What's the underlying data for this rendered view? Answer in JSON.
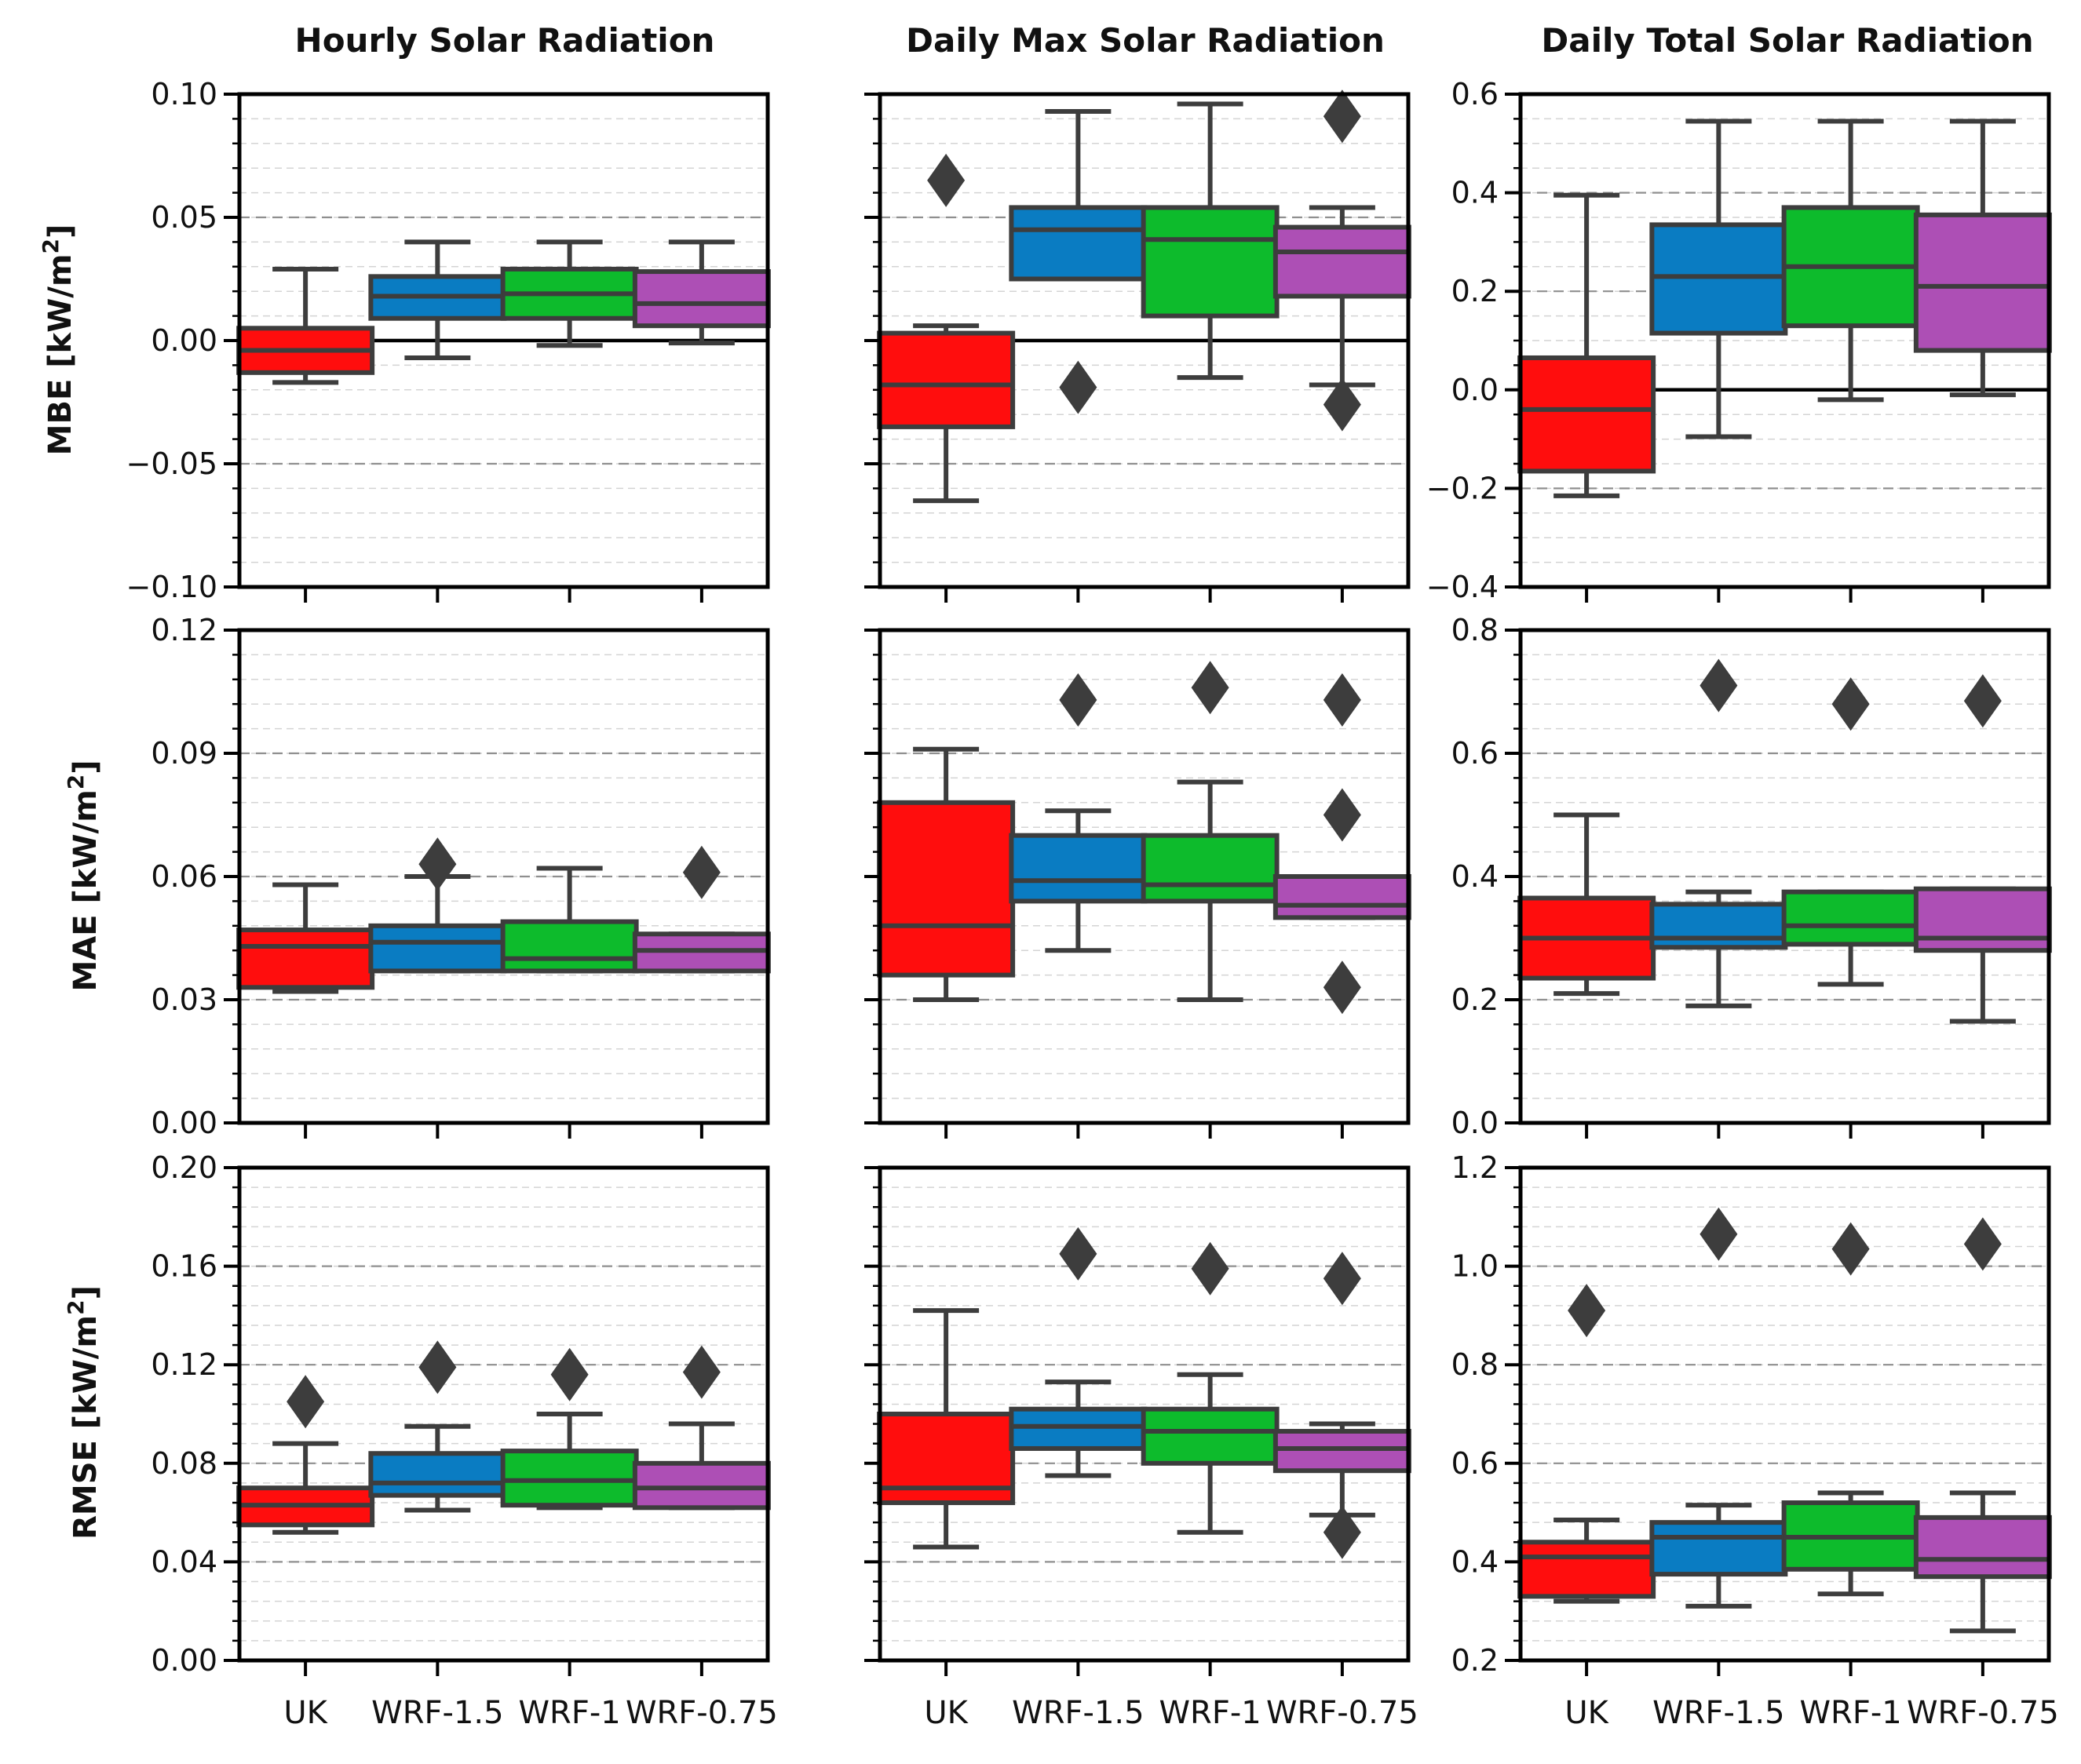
{
  "figure": {
    "column_titles": [
      "Hourly Solar Radiation",
      "Daily Max Solar Radiation",
      "Daily Total Solar Radiation"
    ],
    "row_labels": [
      {
        "metric": "MBE",
        "unit_prefix": "[kW/m",
        "unit_sup": "2",
        "unit_suffix": "]"
      },
      {
        "metric": "MAE",
        "unit_prefix": "[kW/m",
        "unit_sup": "2",
        "unit_suffix": "]"
      },
      {
        "metric": "RMSE",
        "unit_prefix": "[kW/m",
        "unit_sup": "2",
        "unit_suffix": "]"
      }
    ]
  },
  "colors": {
    "UK": "#ff0d0d",
    "WRF-1.5": "#0a7cc2",
    "WRF-1": "#0dbb2c",
    "WRF-0.75": "#ad4fb5",
    "box_edge": "#3d3d3d",
    "flier": "#3d3d3d",
    "grid_major": "#8f8f8f",
    "grid_minor": "#d4d4d4",
    "zero_line": "#000000",
    "axis": "#000000"
  },
  "chart_data": [
    {
      "type": "box",
      "row": 0,
      "col": 0,
      "title": "Hourly Solar Radiation",
      "ylabel": "MBE [kW/m2]",
      "categories": [
        "UK",
        "WRF-1.5",
        "WRF-1",
        "WRF-0.75"
      ],
      "show_category_labels": false,
      "ylim": [
        -0.1,
        0.1
      ],
      "yticks": [
        "0.10",
        "0.05",
        "0.00",
        "−0.05",
        "−0.10"
      ],
      "ytick_values": [
        0.1,
        0.05,
        0,
        -0.05,
        -0.1
      ],
      "ticks_side": "left",
      "zero_line": true,
      "grid_major": [
        0.05,
        -0.05
      ],
      "minor_step": 0.01,
      "boxes": [
        {
          "category": "UK",
          "whislo": -0.017,
          "q1": -0.013,
          "med": -0.004,
          "q3": 0.005,
          "whishi": 0.029,
          "fliers": []
        },
        {
          "category": "WRF-1.5",
          "whislo": -0.007,
          "q1": 0.009,
          "med": 0.018,
          "q3": 0.026,
          "whishi": 0.04,
          "fliers": []
        },
        {
          "category": "WRF-1",
          "whislo": -0.002,
          "q1": 0.009,
          "med": 0.019,
          "q3": 0.029,
          "whishi": 0.04,
          "fliers": []
        },
        {
          "category": "WRF-0.75",
          "whislo": -0.001,
          "q1": 0.006,
          "med": 0.015,
          "q3": 0.028,
          "whishi": 0.04,
          "fliers": []
        }
      ]
    },
    {
      "type": "box",
      "row": 0,
      "col": 1,
      "title": "Daily Max Solar Radiation",
      "ylabel": "",
      "categories": [
        "UK",
        "WRF-1.5",
        "WRF-1",
        "WRF-0.75"
      ],
      "show_category_labels": false,
      "ylim": [
        -0.1,
        0.1
      ],
      "yticks": [],
      "ytick_values": [
        0.1,
        0.05,
        0,
        -0.05,
        -0.1
      ],
      "ticks_side": "left",
      "zero_line": true,
      "grid_major": [
        0.05,
        -0.05
      ],
      "minor_step": 0.01,
      "boxes": [
        {
          "category": "UK",
          "whislo": -0.065,
          "q1": -0.035,
          "med": -0.018,
          "q3": 0.003,
          "whishi": 0.006,
          "fliers": [
            0.065
          ]
        },
        {
          "category": "WRF-1.5",
          "whislo": 0.025,
          "q1": 0.025,
          "med": 0.045,
          "q3": 0.054,
          "whishi": 0.093,
          "fliers": [
            -0.019
          ]
        },
        {
          "category": "WRF-1",
          "whislo": -0.015,
          "q1": 0.01,
          "med": 0.041,
          "q3": 0.054,
          "whishi": 0.096,
          "fliers": []
        },
        {
          "category": "WRF-0.75",
          "whislo": -0.018,
          "q1": 0.018,
          "med": 0.036,
          "q3": 0.046,
          "whishi": 0.054,
          "fliers": [
            0.091,
            -0.026
          ]
        }
      ]
    },
    {
      "type": "box",
      "row": 0,
      "col": 2,
      "title": "Daily Total Solar Radiation",
      "ylabel": "",
      "categories": [
        "UK",
        "WRF-1.5",
        "WRF-1",
        "WRF-0.75"
      ],
      "show_category_labels": false,
      "ylim": [
        -0.4,
        0.6
      ],
      "yticks": [
        "0.6",
        "0.4",
        "0.2",
        "0.0",
        "−0.2",
        "−0.4"
      ],
      "ytick_values": [
        0.6,
        0.4,
        0.2,
        0,
        -0.2,
        -0.4
      ],
      "ticks_side": "left",
      "zero_line": true,
      "grid_major": [
        0.4,
        0.2,
        -0.2
      ],
      "minor_step": 0.05,
      "boxes": [
        {
          "category": "UK",
          "whislo": -0.215,
          "q1": -0.165,
          "med": -0.04,
          "q3": 0.065,
          "whishi": 0.395,
          "fliers": []
        },
        {
          "category": "WRF-1.5",
          "whislo": -0.095,
          "q1": 0.115,
          "med": 0.23,
          "q3": 0.335,
          "whishi": 0.545,
          "fliers": []
        },
        {
          "category": "WRF-1",
          "whislo": -0.02,
          "q1": 0.13,
          "med": 0.25,
          "q3": 0.37,
          "whishi": 0.545,
          "fliers": []
        },
        {
          "category": "WRF-0.75",
          "whislo": -0.01,
          "q1": 0.08,
          "med": 0.21,
          "q3": 0.355,
          "whishi": 0.545,
          "fliers": []
        }
      ]
    },
    {
      "type": "box",
      "row": 1,
      "col": 0,
      "title": "",
      "ylabel": "MAE [kW/m2]",
      "categories": [
        "UK",
        "WRF-1.5",
        "WRF-1",
        "WRF-0.75"
      ],
      "show_category_labels": false,
      "ylim": [
        0,
        0.12
      ],
      "yticks": [
        "0.12",
        "0.09",
        "0.06",
        "0.03",
        "0.00"
      ],
      "ytick_values": [
        0.12,
        0.09,
        0.06,
        0.03,
        0
      ],
      "ticks_side": "left",
      "zero_line": false,
      "grid_major": [
        0.09,
        0.06,
        0.03
      ],
      "minor_step": 0.006,
      "boxes": [
        {
          "category": "UK",
          "whislo": 0.032,
          "q1": 0.033,
          "med": 0.043,
          "q3": 0.047,
          "whishi": 0.058,
          "fliers": []
        },
        {
          "category": "WRF-1.5",
          "whislo": 0.037,
          "q1": 0.037,
          "med": 0.044,
          "q3": 0.048,
          "whishi": 0.06,
          "fliers": [
            0.063
          ]
        },
        {
          "category": "WRF-1",
          "whislo": 0.037,
          "q1": 0.037,
          "med": 0.04,
          "q3": 0.049,
          "whishi": 0.062,
          "fliers": []
        },
        {
          "category": "WRF-0.75",
          "whislo": 0.037,
          "q1": 0.037,
          "med": 0.042,
          "q3": 0.046,
          "whishi": 0.046,
          "fliers": [
            0.061
          ]
        }
      ]
    },
    {
      "type": "box",
      "row": 1,
      "col": 1,
      "title": "",
      "ylabel": "",
      "categories": [
        "UK",
        "WRF-1.5",
        "WRF-1",
        "WRF-0.75"
      ],
      "show_category_labels": false,
      "ylim": [
        0,
        0.12
      ],
      "yticks": [],
      "ytick_values": [
        0.12,
        0.09,
        0.06,
        0.03,
        0
      ],
      "ticks_side": "left",
      "zero_line": false,
      "grid_major": [
        0.09,
        0.06,
        0.03
      ],
      "minor_step": 0.006,
      "boxes": [
        {
          "category": "UK",
          "whislo": 0.03,
          "q1": 0.036,
          "med": 0.048,
          "q3": 0.078,
          "whishi": 0.091,
          "fliers": []
        },
        {
          "category": "WRF-1.5",
          "whislo": 0.042,
          "q1": 0.054,
          "med": 0.059,
          "q3": 0.07,
          "whishi": 0.076,
          "fliers": [
            0.103
          ]
        },
        {
          "category": "WRF-1",
          "whislo": 0.03,
          "q1": 0.054,
          "med": 0.058,
          "q3": 0.07,
          "whishi": 0.083,
          "fliers": [
            0.106
          ]
        },
        {
          "category": "WRF-0.75",
          "whislo": 0.05,
          "q1": 0.05,
          "med": 0.053,
          "q3": 0.06,
          "whishi": 0.06,
          "fliers": [
            0.103,
            0.075,
            0.033
          ]
        }
      ]
    },
    {
      "type": "box",
      "row": 1,
      "col": 2,
      "title": "",
      "ylabel": "",
      "categories": [
        "UK",
        "WRF-1.5",
        "WRF-1",
        "WRF-0.75"
      ],
      "show_category_labels": false,
      "ylim": [
        0,
        0.8
      ],
      "yticks": [
        "0.8",
        "0.6",
        "0.4",
        "0.2",
        "0.0"
      ],
      "ytick_values": [
        0.8,
        0.6,
        0.4,
        0.2,
        0
      ],
      "ticks_side": "left",
      "zero_line": false,
      "grid_major": [
        0.6,
        0.4,
        0.2
      ],
      "minor_step": 0.04,
      "boxes": [
        {
          "category": "UK",
          "whislo": 0.21,
          "q1": 0.235,
          "med": 0.3,
          "q3": 0.365,
          "whishi": 0.5,
          "fliers": []
        },
        {
          "category": "WRF-1.5",
          "whislo": 0.19,
          "q1": 0.285,
          "med": 0.3,
          "q3": 0.355,
          "whishi": 0.375,
          "fliers": [
            0.71
          ]
        },
        {
          "category": "WRF-1",
          "whislo": 0.225,
          "q1": 0.29,
          "med": 0.32,
          "q3": 0.375,
          "whishi": 0.375,
          "fliers": [
            0.68
          ]
        },
        {
          "category": "WRF-0.75",
          "whislo": 0.165,
          "q1": 0.28,
          "med": 0.3,
          "q3": 0.38,
          "whishi": 0.38,
          "fliers": [
            0.685
          ]
        }
      ]
    },
    {
      "type": "box",
      "row": 2,
      "col": 0,
      "title": "",
      "ylabel": "RMSE [kW/m2]",
      "categories": [
        "UK",
        "WRF-1.5",
        "WRF-1",
        "WRF-0.75"
      ],
      "show_category_labels": true,
      "ylim": [
        0,
        0.2
      ],
      "yticks": [
        "0.20",
        "0.16",
        "0.12",
        "0.08",
        "0.04",
        "0.00"
      ],
      "ytick_values": [
        0.2,
        0.16,
        0.12,
        0.08,
        0.04,
        0
      ],
      "ticks_side": "left",
      "zero_line": false,
      "grid_major": [
        0.16,
        0.12,
        0.08,
        0.04
      ],
      "minor_step": 0.008,
      "boxes": [
        {
          "category": "UK",
          "whislo": 0.052,
          "q1": 0.055,
          "med": 0.063,
          "q3": 0.07,
          "whishi": 0.088,
          "fliers": [
            0.105
          ]
        },
        {
          "category": "WRF-1.5",
          "whislo": 0.061,
          "q1": 0.067,
          "med": 0.072,
          "q3": 0.084,
          "whishi": 0.095,
          "fliers": [
            0.119
          ]
        },
        {
          "category": "WRF-1",
          "whislo": 0.062,
          "q1": 0.063,
          "med": 0.073,
          "q3": 0.085,
          "whishi": 0.1,
          "fliers": [
            0.116
          ]
        },
        {
          "category": "WRF-0.75",
          "whislo": 0.062,
          "q1": 0.062,
          "med": 0.07,
          "q3": 0.08,
          "whishi": 0.096,
          "fliers": [
            0.117
          ]
        }
      ]
    },
    {
      "type": "box",
      "row": 2,
      "col": 1,
      "title": "",
      "ylabel": "",
      "categories": [
        "UK",
        "WRF-1.5",
        "WRF-1",
        "WRF-0.75"
      ],
      "show_category_labels": true,
      "ylim": [
        0,
        0.2
      ],
      "yticks": [],
      "ytick_values": [
        0.2,
        0.16,
        0.12,
        0.08,
        0.04,
        0
      ],
      "ticks_side": "left",
      "zero_line": false,
      "grid_major": [
        0.16,
        0.12,
        0.08,
        0.04
      ],
      "minor_step": 0.008,
      "boxes": [
        {
          "category": "UK",
          "whislo": 0.046,
          "q1": 0.064,
          "med": 0.07,
          "q3": 0.1,
          "whishi": 0.142,
          "fliers": []
        },
        {
          "category": "WRF-1.5",
          "whislo": 0.075,
          "q1": 0.086,
          "med": 0.095,
          "q3": 0.102,
          "whishi": 0.113,
          "fliers": [
            0.165
          ]
        },
        {
          "category": "WRF-1",
          "whislo": 0.052,
          "q1": 0.08,
          "med": 0.093,
          "q3": 0.102,
          "whishi": 0.116,
          "fliers": [
            0.159
          ]
        },
        {
          "category": "WRF-0.75",
          "whislo": 0.059,
          "q1": 0.077,
          "med": 0.086,
          "q3": 0.093,
          "whishi": 0.096,
          "fliers": [
            0.155,
            0.052
          ]
        }
      ]
    },
    {
      "type": "box",
      "row": 2,
      "col": 2,
      "title": "",
      "ylabel": "",
      "categories": [
        "UK",
        "WRF-1.5",
        "WRF-1",
        "WRF-0.75"
      ],
      "show_category_labels": true,
      "ylim": [
        0.2,
        1.2
      ],
      "yticks": [
        "1.2",
        "1.0",
        "0.8",
        "0.6",
        "0.4",
        "0.2"
      ],
      "ytick_values": [
        1.2,
        1.0,
        0.8,
        0.6,
        0.4,
        0.2
      ],
      "ticks_side": "left",
      "zero_line": false,
      "grid_major": [
        1.0,
        0.8,
        0.6,
        0.4
      ],
      "minor_step": 0.04,
      "boxes": [
        {
          "category": "UK",
          "whislo": 0.32,
          "q1": 0.33,
          "med": 0.41,
          "q3": 0.44,
          "whishi": 0.485,
          "fliers": [
            0.91
          ]
        },
        {
          "category": "WRF-1.5",
          "whislo": 0.31,
          "q1": 0.375,
          "med": 0.45,
          "q3": 0.48,
          "whishi": 0.515,
          "fliers": [
            1.065
          ]
        },
        {
          "category": "WRF-1",
          "whislo": 0.335,
          "q1": 0.385,
          "med": 0.45,
          "q3": 0.52,
          "whishi": 0.54,
          "fliers": [
            1.035
          ]
        },
        {
          "category": "WRF-0.75",
          "whislo": 0.26,
          "q1": 0.37,
          "med": 0.405,
          "q3": 0.49,
          "whishi": 0.54,
          "fliers": [
            1.045
          ]
        }
      ]
    }
  ]
}
